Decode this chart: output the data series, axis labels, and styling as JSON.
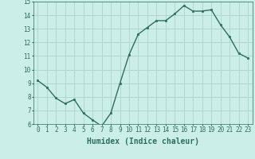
{
  "x": [
    0,
    1,
    2,
    3,
    4,
    5,
    6,
    7,
    8,
    9,
    10,
    11,
    12,
    13,
    14,
    15,
    16,
    17,
    18,
    19,
    20,
    21,
    22,
    23
  ],
  "y": [
    9.2,
    8.7,
    7.9,
    7.5,
    7.8,
    6.8,
    6.3,
    5.85,
    6.8,
    9.0,
    11.1,
    12.6,
    13.1,
    13.6,
    13.6,
    14.1,
    14.7,
    14.3,
    14.3,
    14.4,
    13.3,
    12.4,
    11.2,
    10.85
  ],
  "xlabel": "Humidex (Indice chaleur)",
  "ylim": [
    6,
    15
  ],
  "xlim_min": -0.5,
  "xlim_max": 23.5,
  "yticks": [
    6,
    7,
    8,
    9,
    10,
    11,
    12,
    13,
    14,
    15
  ],
  "xticks": [
    0,
    1,
    2,
    3,
    4,
    5,
    6,
    7,
    8,
    9,
    10,
    11,
    12,
    13,
    14,
    15,
    16,
    17,
    18,
    19,
    20,
    21,
    22,
    23
  ],
  "line_color": "#2d6e63",
  "marker_color": "#2d6e63",
  "bg_color": "#cceee8",
  "grid_color": "#b0d8d0",
  "label_color": "#2d6e63",
  "tick_fontsize": 5.5,
  "xlabel_fontsize": 7.0,
  "linewidth": 1.0,
  "markersize": 2.0
}
